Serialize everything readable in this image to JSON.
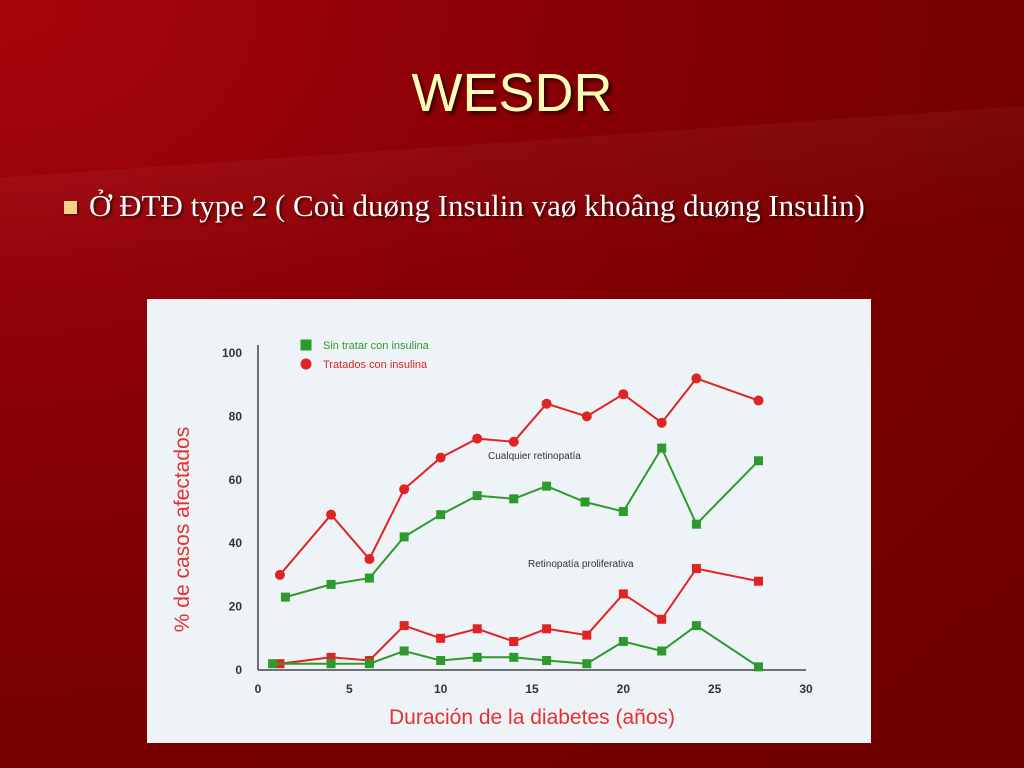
{
  "title": "WESDR",
  "bullet": "Ở ĐTĐ type 2 ( Coù duøng Insulin vaø khoâng duøng Insulin)",
  "chart_data": {
    "type": "line",
    "xlabel": "Duración de la diabetes (años)",
    "ylabel": "% de casos afectados",
    "xlim": [
      0,
      30
    ],
    "ylim": [
      0,
      100
    ],
    "x_ticks": [
      0,
      5,
      10,
      15,
      20,
      25,
      30
    ],
    "y_ticks": [
      0,
      20,
      40,
      60,
      80,
      100
    ],
    "grid": false,
    "legend": {
      "placement": "top-left",
      "entries": [
        {
          "label": "Sin tratar con insulina",
          "color": "#2e9a2e",
          "marker": "square"
        },
        {
          "label": "Tratados con insulina",
          "color": "#e02424",
          "marker": "circle"
        }
      ]
    },
    "annotations": [
      "Cualquier retinopatía",
      "Retinopatía proliferativa"
    ],
    "series": [
      {
        "group": "Cualquier retinopatía",
        "color": "#e02424",
        "marker": "circle",
        "x": [
          1.2,
          4.0,
          6.1,
          8.0,
          10.0,
          12.0,
          14.0,
          15.8,
          18.0,
          20.0,
          22.1,
          24.0,
          27.4
        ],
        "y": [
          30,
          49,
          35,
          57,
          67,
          73,
          72,
          84,
          80,
          87,
          78,
          92,
          85
        ]
      },
      {
        "group": "Cualquier retinopatía",
        "color": "#2e9a2e",
        "marker": "square",
        "x": [
          1.5,
          4.0,
          6.1,
          8.0,
          10.0,
          12.0,
          14.0,
          15.8,
          17.9,
          20.0,
          22.1,
          24.0,
          27.4
        ],
        "y": [
          23,
          27,
          29,
          42,
          49,
          55,
          54,
          58,
          53,
          50,
          70,
          46,
          66
        ]
      },
      {
        "group": "Retinopatía proliferativa",
        "color": "#e02424",
        "marker": "square",
        "x": [
          1.2,
          4.0,
          6.1,
          8.0,
          10.0,
          12.0,
          14.0,
          15.8,
          18.0,
          20.0,
          22.1,
          24.0,
          27.4
        ],
        "y": [
          2,
          4,
          3,
          14,
          10,
          13,
          9,
          13,
          11,
          24,
          16,
          32,
          28
        ]
      },
      {
        "group": "Retinopatía proliferativa",
        "color": "#2e9a2e",
        "marker": "square",
        "x": [
          0.8,
          4.0,
          6.1,
          8.0,
          10.0,
          12.0,
          14.0,
          15.8,
          18.0,
          20.0,
          22.1,
          24.0,
          27.4
        ],
        "y": [
          2,
          2,
          2,
          6,
          3,
          4,
          4,
          3,
          2,
          9,
          6,
          14,
          1
        ]
      }
    ]
  }
}
